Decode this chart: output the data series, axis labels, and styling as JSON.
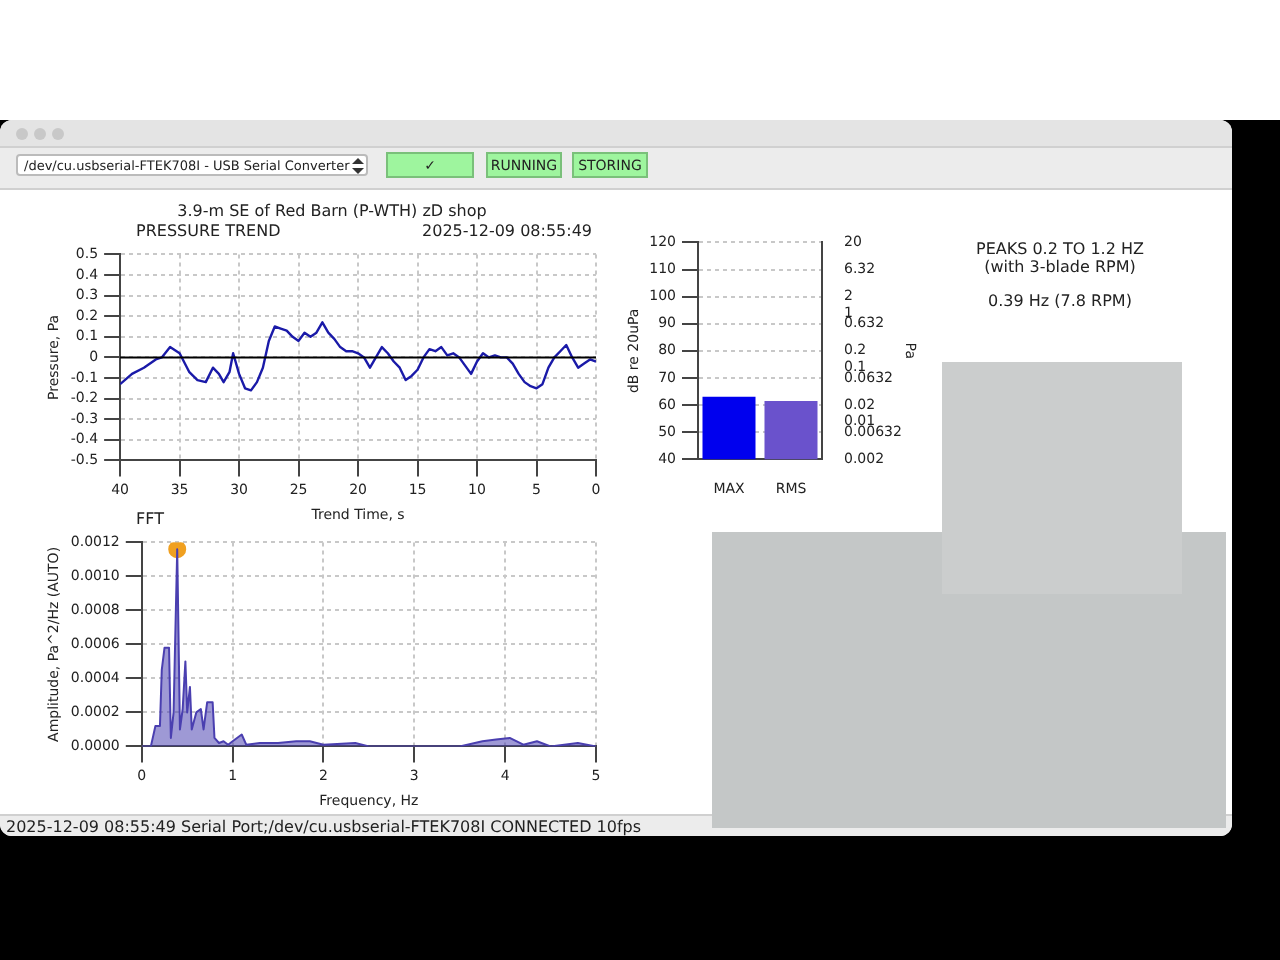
{
  "chart_data": [
    {
      "type": "line",
      "title": "3.9-m SE of Red Barn (P-WTH) zD shop",
      "subtitle": "PRESSURE TREND",
      "annotations": [
        "2025-12-09 08:55:49"
      ],
      "xlabel": "Trend Time, s",
      "ylabel": "Pressure, Pa",
      "color": "#1a1aa8",
      "x": [
        40,
        39,
        38,
        37,
        36.5,
        35.8,
        35,
        34.2,
        33.5,
        32.8,
        32.2,
        31.7,
        31.3,
        30.8,
        30.5,
        30,
        29.5,
        29,
        28.5,
        28,
        27.5,
        27,
        26.5,
        26,
        25.5,
        25,
        24.5,
        24,
        23.5,
        23,
        22.5,
        22,
        21.5,
        21,
        20.5,
        20,
        19.5,
        19,
        18.5,
        18,
        17.5,
        17,
        16.5,
        16,
        15.5,
        15,
        14.5,
        14,
        13.5,
        13,
        12.5,
        12,
        11.5,
        11,
        10.5,
        10,
        9.5,
        9,
        8.5,
        8,
        7.5,
        7,
        6.5,
        6,
        5.5,
        5,
        4.5,
        4,
        3.5,
        3,
        2.5,
        2,
        1.5,
        1,
        0.5,
        0
      ],
      "values": [
        -0.13,
        -0.08,
        -0.05,
        -0.01,
        0,
        0.05,
        0.02,
        -0.07,
        -0.11,
        -0.12,
        -0.05,
        -0.08,
        -0.12,
        -0.07,
        0.02,
        -0.08,
        -0.15,
        -0.16,
        -0.12,
        -0.05,
        0.08,
        0.15,
        0.14,
        0.13,
        0.1,
        0.08,
        0.12,
        0.1,
        0.12,
        0.17,
        0.12,
        0.09,
        0.05,
        0.03,
        0.03,
        0.02,
        0,
        -0.05,
        0,
        0.05,
        0.02,
        -0.02,
        -0.05,
        -0.11,
        -0.09,
        -0.06,
        0,
        0.04,
        0.03,
        0.05,
        0.01,
        0.02,
        0,
        -0.04,
        -0.08,
        -0.02,
        0.02,
        0,
        0.01,
        0,
        0,
        -0.03,
        -0.08,
        -0.12,
        -0.14,
        -0.15,
        -0.13,
        -0.05,
        0,
        0.03,
        0.06,
        0,
        -0.05,
        -0.03,
        -0.01,
        -0.02
      ],
      "xlim": [
        40,
        0
      ],
      "xticks": [
        40,
        35,
        30,
        25,
        20,
        15,
        10,
        5,
        0
      ],
      "ylim": [
        -0.5,
        0.5
      ],
      "yticks": [
        -0.5,
        -0.4,
        -0.3,
        -0.2,
        -0.1,
        0,
        0.1,
        0.2,
        0.3,
        0.4,
        0.5
      ],
      "grid": true,
      "ref_lines": [
        {
          "axis": "y",
          "value": 0,
          "color": "#000000"
        }
      ]
    },
    {
      "type": "bar",
      "categories": [
        "MAX",
        "RMS"
      ],
      "values": [
        63,
        61.5
      ],
      "colors": [
        "#0000ee",
        "#6a52cc"
      ],
      "ylabel": "dB re 20uPa",
      "y2label": "Pa",
      "ylim": [
        40,
        120
      ],
      "yticks": [
        40,
        50,
        60,
        70,
        80,
        90,
        100,
        110,
        120
      ],
      "y2lim": [
        0.002,
        20
      ],
      "y2ticks": [
        0.002,
        0.00632,
        0.01,
        0.02,
        0.0632,
        0.1,
        0.2,
        0.632,
        1,
        2,
        6.32,
        20
      ],
      "log": "y2",
      "grid": "y"
    },
    {
      "type": "other",
      "title": "PEAKS 0.2 TO 1.2 HZ",
      "subtitle": "(with 3-blade RPM)",
      "annotations": [
        "0.39 Hz (7.8 RPM)"
      ]
    },
    {
      "type": "area",
      "title": "FFT",
      "xlabel": "Frequency, Hz",
      "ylabel": "Amplitude, Pa^2/Hz (AUTO)",
      "series": [
        {
          "type": "area",
          "color": "#4a3fb0",
          "x": [
            0,
            0.1,
            0.15,
            0.2,
            0.22,
            0.25,
            0.3,
            0.32,
            0.35,
            0.39,
            0.42,
            0.45,
            0.48,
            0.5,
            0.53,
            0.55,
            0.6,
            0.65,
            0.68,
            0.72,
            0.78,
            0.8,
            0.85,
            0.9,
            0.95,
            1,
            1.1,
            1.15,
            1.3,
            1.5,
            1.7,
            1.85,
            2,
            2.35,
            2.5,
            3,
            3.5,
            3.75,
            3.9,
            4.05,
            4.2,
            4.35,
            4.5,
            4.8,
            5
          ],
          "values": [
            0,
            0,
            0.00012,
            0.00012,
            0.00045,
            0.00058,
            0.00058,
            5e-05,
            0.0002,
            0.00116,
            0.0001,
            0.00022,
            0.0005,
            0.0002,
            0.00035,
            0.0001,
            0.0002,
            0.00022,
            0.0001,
            0.00026,
            0.00026,
            5e-05,
            2e-05,
            3e-05,
            1e-05,
            3e-05,
            7e-05,
            1e-05,
            2e-05,
            2e-05,
            3e-05,
            3e-05,
            1e-05,
            2e-05,
            0,
            0,
            0,
            3e-05,
            4e-05,
            5e-05,
            1e-05,
            3e-05,
            0,
            2e-05,
            0
          ]
        },
        {
          "type": "scatter",
          "color": "#f0a020",
          "marker": "circle",
          "x": [
            0.39
          ],
          "values": [
            0.00116
          ]
        }
      ],
      "xlim": [
        0,
        5
      ],
      "xticks": [
        0,
        1,
        2,
        3,
        4,
        5
      ],
      "ylim": [
        0,
        0.0012
      ],
      "yticks": [
        {
          "value": 0,
          "label": "0.0000"
        },
        {
          "value": 0.0002,
          "label": "0.0002"
        },
        {
          "value": 0.0004,
          "label": "0.0004"
        },
        {
          "value": 0.0006,
          "label": "0.0006"
        },
        {
          "value": 0.0008,
          "label": "0.0008"
        },
        {
          "value": 0.001,
          "label": "0.0010"
        },
        {
          "value": 0.0012,
          "label": "0.0012"
        }
      ],
      "grid": true
    },
    {
      "type": "other",
      "annotations": [
        "/dev/cu.usbserial-FTEK708I - USB Serial Converter",
        "✓",
        "RUNNING",
        "STORING",
        "2025-12-09 08:55:49 Serial Port;/dev/cu.usbserial-FTEK708I CONNECTED 10fps"
      ]
    }
  ]
}
